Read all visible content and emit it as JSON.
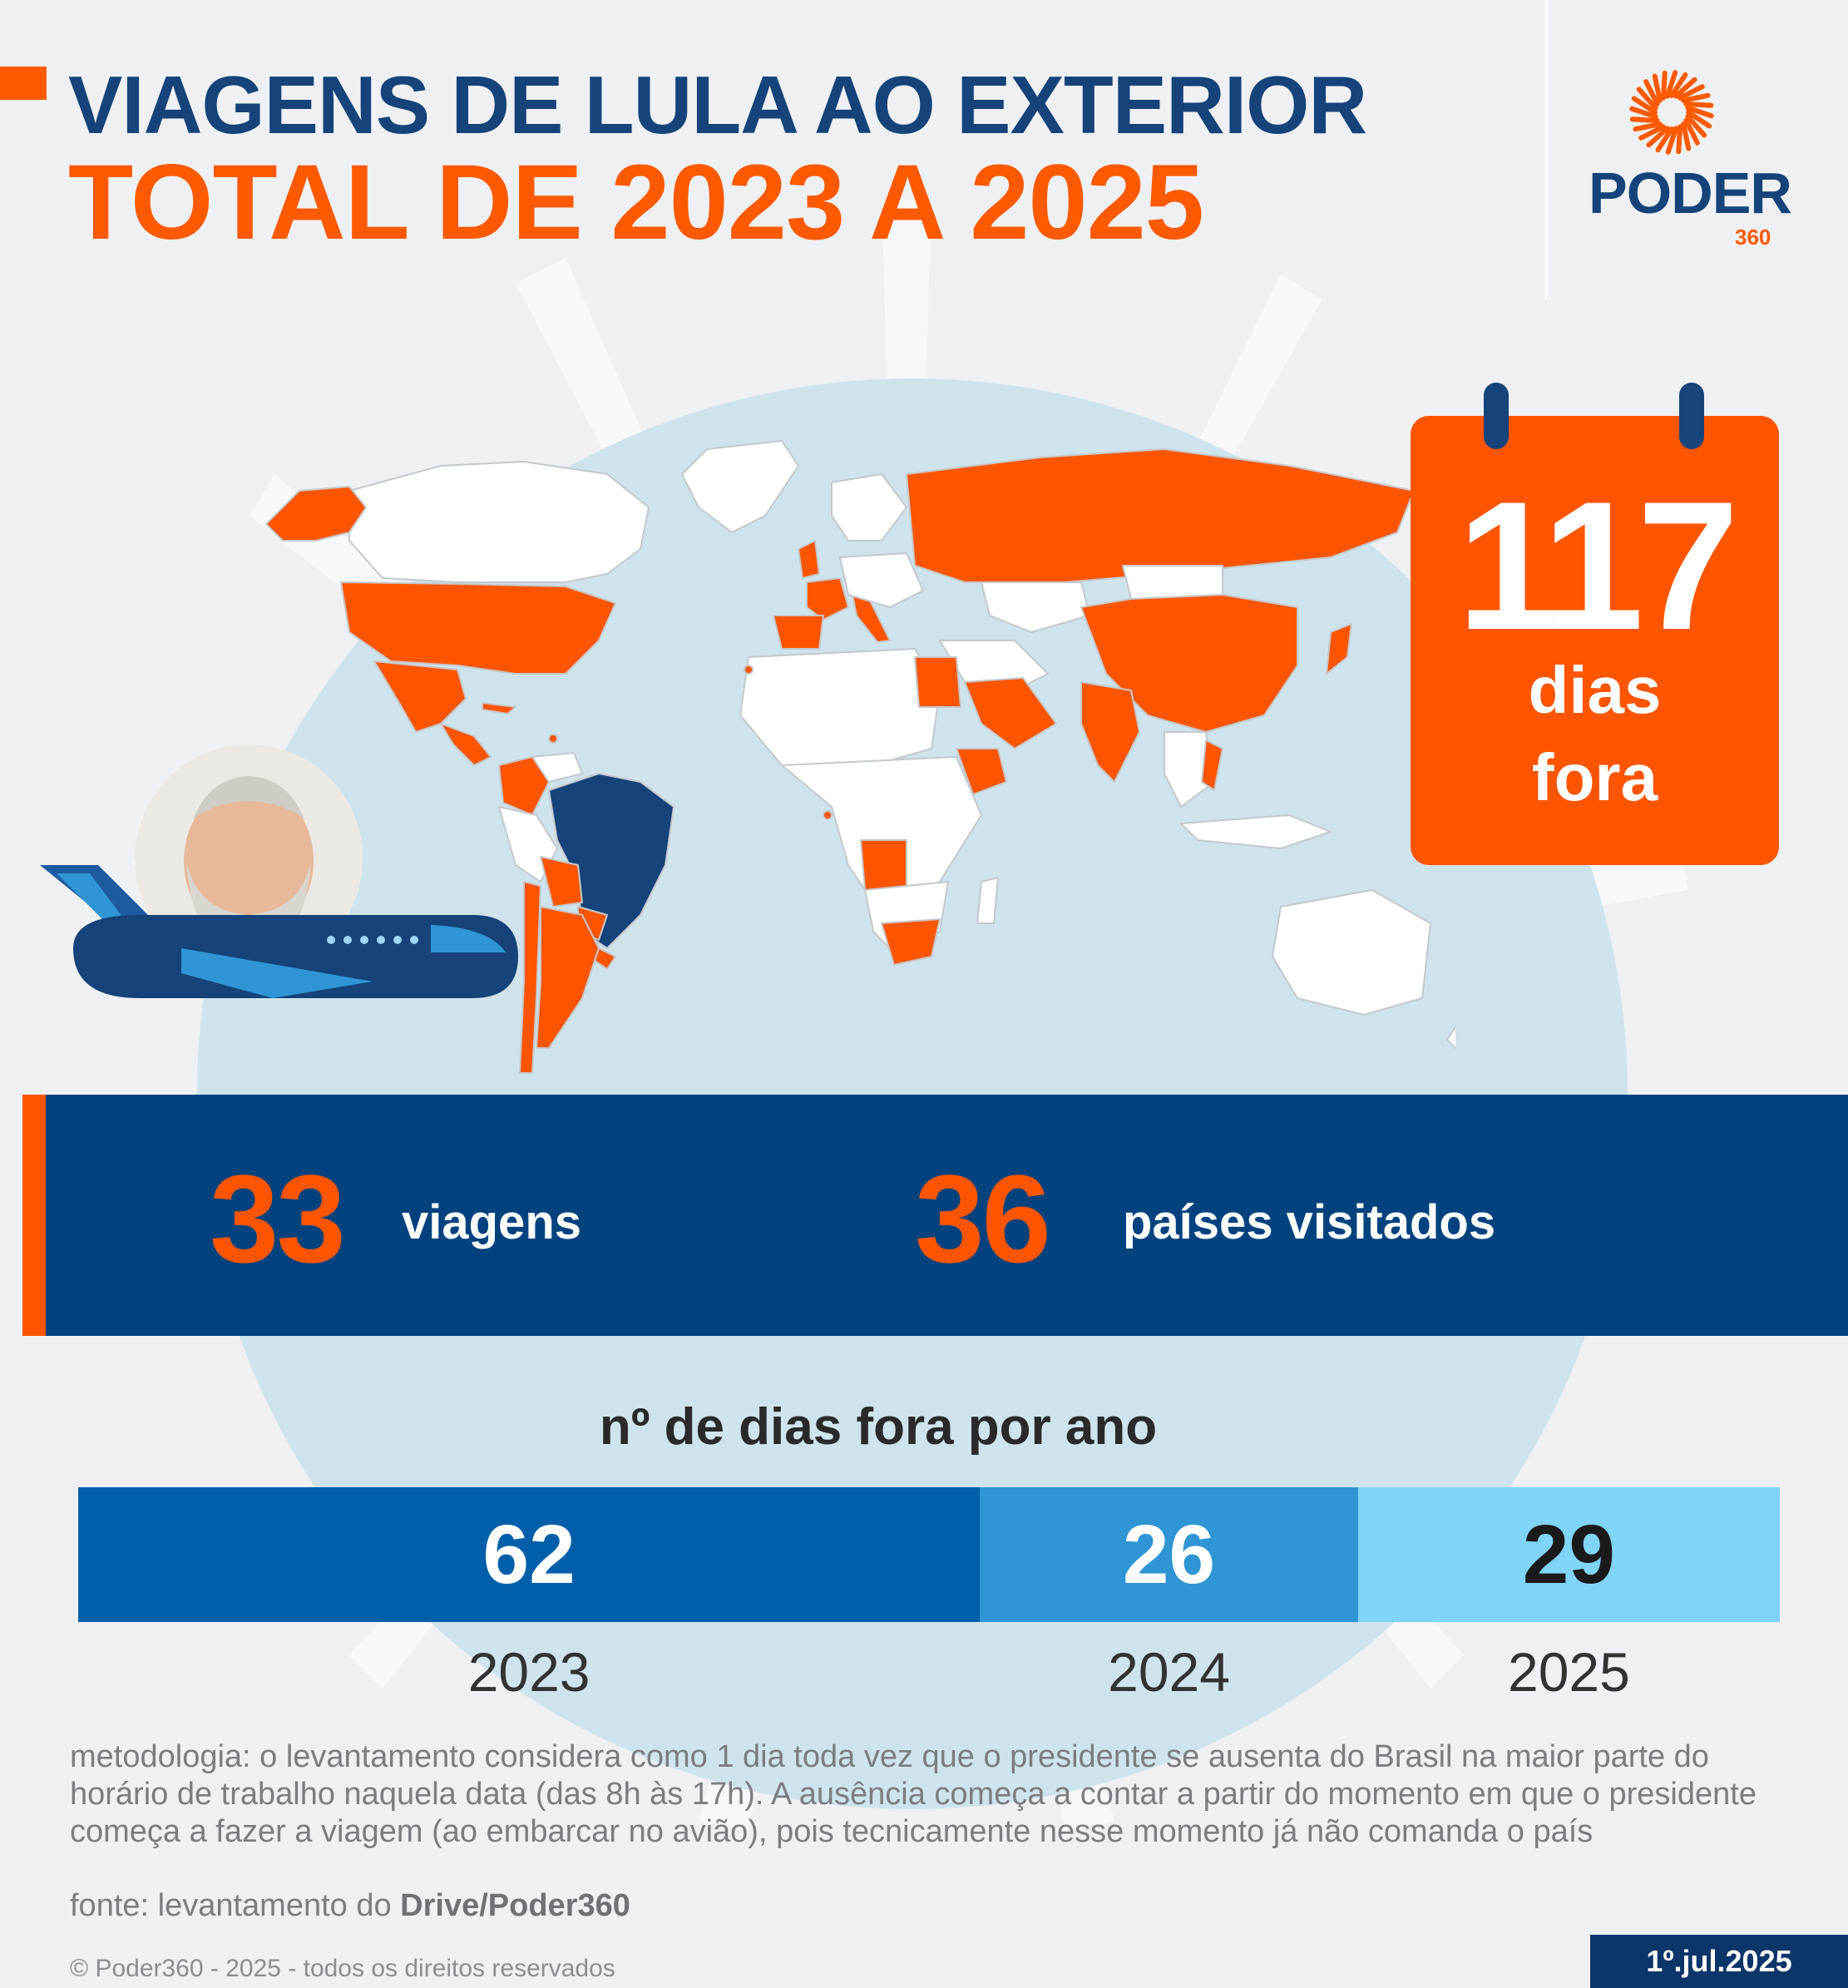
{
  "header": {
    "title": "VIAGENS DE LULA AO EXTERIOR",
    "subtitle": "TOTAL DE 2023 A 2025"
  },
  "logo": {
    "name": "PODER",
    "number": "360",
    "icon": "sun-rays-icon"
  },
  "calendar": {
    "value": "117",
    "line1": "dias",
    "line2": "fora",
    "icon": "calendar-icon"
  },
  "stats": {
    "trips_value": "33",
    "trips_label": "viagens",
    "countries_value": "36",
    "countries_label": "países visitados"
  },
  "chart_data": {
    "type": "bar",
    "orientation": "horizontal-stacked",
    "title": "nº de dias fora por ano",
    "categories": [
      "2023",
      "2024",
      "2025"
    ],
    "values": [
      62,
      26,
      29
    ],
    "colors": [
      "#005fa8",
      "#2f95d4",
      "#80d4f7"
    ],
    "value_label_colors": [
      "#ffffff",
      "#ffffff",
      "#1a1a1a"
    ]
  },
  "map": {
    "highlight_color": "#ff5500",
    "home_color": "#15437a",
    "other_color": "#ffffff",
    "ocean_color": "#cfe3ec"
  },
  "footer": {
    "methodology": "metodologia: o levantamento considera como 1 dia toda vez que o presidente se ausenta do Brasil na maior parte do horário de trabalho naquela data (das 8h às 17h). A ausência começa a contar a partir do momento em que o presidente começa a fazer a viagem (ao embarcar no avião), pois tecnicamente nesse momento já não comanda o país",
    "source_prefix": "fonte: levantamento do ",
    "source_name": "Drive/Poder360",
    "copyright": "© Poder360 - 2025 - todos os direitos reservados",
    "date": "1º.jul.2025"
  },
  "colors": {
    "accent": "#ff5a00",
    "navy": "#15437a",
    "band": "#00427e",
    "background": "#eef0f3"
  }
}
